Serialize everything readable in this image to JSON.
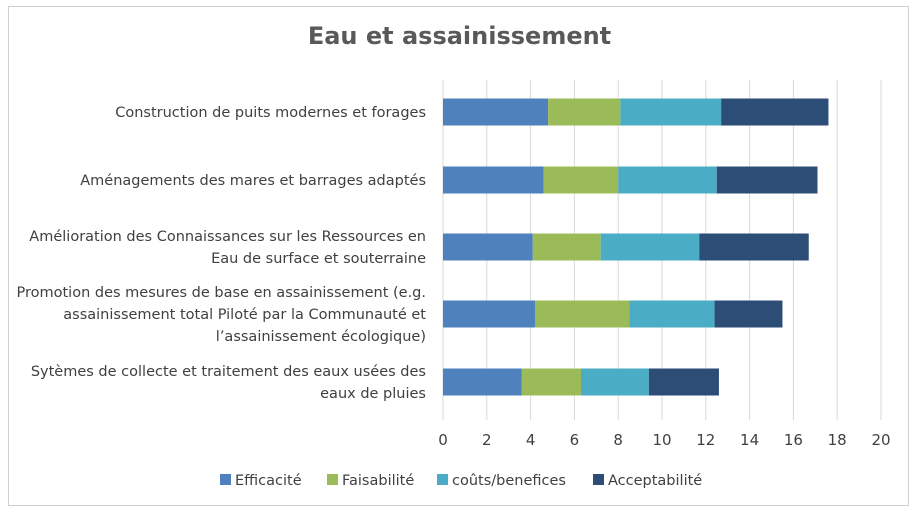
{
  "chart_data": {
    "type": "bar",
    "orientation": "horizontal",
    "stacked": true,
    "title": "Eau et assainissement",
    "xlim": [
      0,
      20
    ],
    "xticks": [
      "0",
      "2",
      "4",
      "6",
      "8",
      "10",
      "12",
      "14",
      "16",
      "18",
      "20"
    ],
    "grid": true,
    "legend_position": "bottom",
    "categories": [
      [
        "Construction de puits modernes et  forages"
      ],
      [
        "Aménagements des mares et barrages adaptés"
      ],
      [
        "Amélioration des Connaissances sur les Ressources en",
        "Eau de surface et souterraine"
      ],
      [
        "Promotion des mesures de base en assainissement (e.g.",
        "assainissement total Piloté par la Communauté et",
        "l’assainissement écologique)"
      ],
      [
        "Sytèmes de collecte et traitement des eaux usées des",
        "eaux de pluies"
      ]
    ],
    "series": [
      {
        "name": "Efficacité",
        "color": "#4f81bd",
        "values": [
          4.8,
          4.6,
          4.1,
          4.2,
          3.6
        ]
      },
      {
        "name": "Faisabilité",
        "color": "#9bbb59",
        "values": [
          3.3,
          3.4,
          3.1,
          4.3,
          2.7
        ]
      },
      {
        "name": "coûts/benefices",
        "color": "#4bacc6",
        "values": [
          4.6,
          4.5,
          4.5,
          3.9,
          3.1
        ]
      },
      {
        "name": "Acceptabilité",
        "color": "#2c4d75",
        "values": [
          4.9,
          4.6,
          5.0,
          3.1,
          3.2
        ]
      }
    ]
  }
}
